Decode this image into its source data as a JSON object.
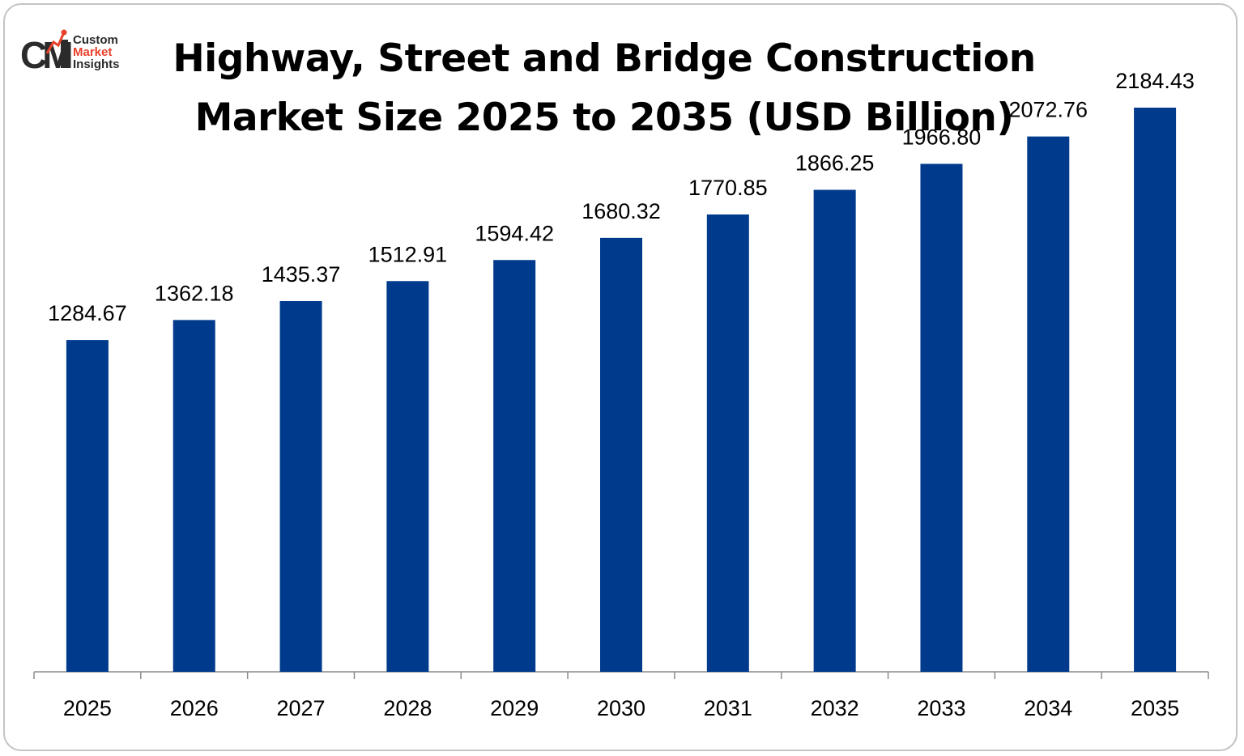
{
  "logo": {
    "mark": "CMI",
    "line1": "Custom",
    "line2": "Market",
    "line3": "Insights"
  },
  "chart_data": {
    "type": "bar",
    "title_line1": "Highway, Street and Bridge Construction",
    "title_line2": "Market Size 2025 to 2035 (USD Billion)",
    "categories": [
      "2025",
      "2026",
      "2027",
      "2028",
      "2029",
      "2030",
      "2031",
      "2032",
      "2033",
      "2034",
      "2035"
    ],
    "values": [
      1284.67,
      1362.18,
      1435.37,
      1512.91,
      1594.42,
      1680.32,
      1770.85,
      1866.25,
      1966.8,
      2072.76,
      2184.43
    ],
    "value_labels": [
      "1284.67",
      "1362.18",
      "1435.37",
      "1512.91",
      "1594.42",
      "1680.32",
      "1770.85",
      "1866.25",
      "1966.80",
      "2072.76",
      "2184.43"
    ],
    "xlabel": "",
    "ylabel": "",
    "ylim": [
      0,
      2184.43
    ],
    "grid": false,
    "legend": "none",
    "bar_color": "#003a8c"
  }
}
